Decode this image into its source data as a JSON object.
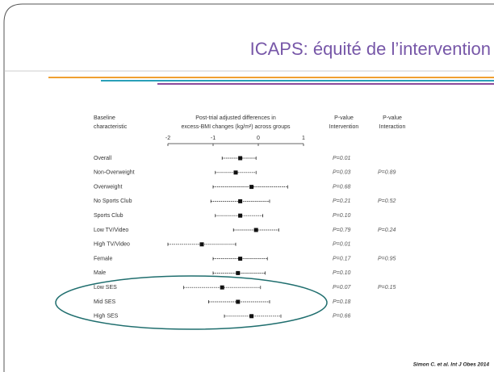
{
  "chart_data": {
    "type": "forest",
    "title": "ICAPS: équité de l’intervention",
    "header_label": "Baseline characteristic",
    "axis_label": "Post-trial adjusted differences in excess-BMI changes (kg/m²) across groups",
    "header_p_intervention": "P-value Intervention",
    "header_p_interaction": "P-value Interaction",
    "citation": "Simon C. et al. Int J Obes 2014",
    "xlim": [
      -2,
      1
    ],
    "xticks": [
      -2,
      -1,
      0,
      1
    ],
    "color": "#111111",
    "rows": [
      {
        "label": "Overall",
        "estimate": -0.4,
        "ci": [
          -0.8,
          -0.05
        ],
        "p_intervention": "P=0.01",
        "p_interaction": null
      },
      {
        "label": "Non-Overweight",
        "estimate": -0.5,
        "ci": [
          -0.95,
          -0.05
        ],
        "p_intervention": "P=0.03",
        "p_interaction": "P=0.89"
      },
      {
        "label": "Overweight",
        "estimate": -0.15,
        "ci": [
          -1.0,
          0.65
        ],
        "p_intervention": "P=0.68",
        "p_interaction": null
      },
      {
        "label": "No Sports Club",
        "estimate": -0.4,
        "ci": [
          -1.05,
          0.25
        ],
        "p_intervention": "P=0.21",
        "p_interaction": "P=0.52"
      },
      {
        "label": "Sports Club",
        "estimate": -0.4,
        "ci": [
          -0.95,
          0.1
        ],
        "p_intervention": "P=0.10",
        "p_interaction": null
      },
      {
        "label": "Low TV/Video",
        "estimate": -0.05,
        "ci": [
          -0.55,
          0.45
        ],
        "p_intervention": "P=0.79",
        "p_interaction": "P=0.24"
      },
      {
        "label": "High TV/Video",
        "estimate": -1.25,
        "ci": [
          -2.0,
          -0.5
        ],
        "p_intervention": "P=0.01",
        "p_interaction": null
      },
      {
        "label": "Female",
        "estimate": -0.4,
        "ci": [
          -1.0,
          0.2
        ],
        "p_intervention": "P=0.17",
        "p_interaction": "P=0.95"
      },
      {
        "label": "Male",
        "estimate": -0.45,
        "ci": [
          -1.0,
          0.15
        ],
        "p_intervention": "P=0.10",
        "p_interaction": null
      },
      {
        "label": "Low SES",
        "estimate": -0.8,
        "ci": [
          -1.65,
          0.05
        ],
        "p_intervention": "P=0.07",
        "p_interaction": "P=0.15"
      },
      {
        "label": "Mid SES",
        "estimate": -0.45,
        "ci": [
          -1.1,
          0.25
        ],
        "p_intervention": "P=0.18",
        "p_interaction": null
      },
      {
        "label": "High SES",
        "estimate": -0.15,
        "ci": [
          -0.75,
          0.5
        ],
        "p_intervention": "P=0.66",
        "p_interaction": null
      }
    ]
  }
}
